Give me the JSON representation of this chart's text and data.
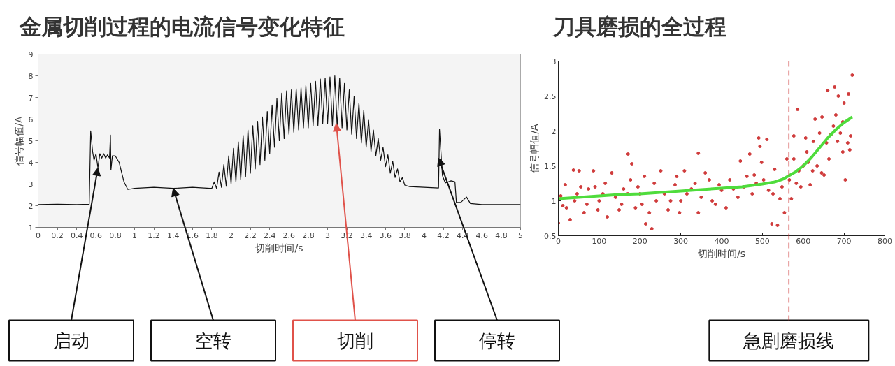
{
  "chart_data": [
    {
      "type": "line",
      "title": "金属切削过程的电流信号变化特征",
      "xlabel": "切削时间/s",
      "ylabel": "信号幅值/A",
      "xlim": [
        0,
        5
      ],
      "ylim": [
        1,
        9
      ],
      "xticks": [
        0,
        0.2,
        0.4,
        0.6,
        0.8,
        1,
        1.2,
        1.4,
        1.6,
        1.8,
        2,
        2.2,
        2.4,
        2.6,
        2.8,
        3,
        3.2,
        3.4,
        3.6,
        3.8,
        4,
        4.2,
        4.4,
        4.6,
        4.8,
        5
      ],
      "yticks": [
        1,
        2,
        3,
        4,
        5,
        6,
        7,
        8,
        9
      ],
      "grid": false,
      "line_style": "solid",
      "x": [
        0,
        0.2,
        0.4,
        0.53,
        0.545,
        0.565,
        0.58,
        0.6,
        0.62,
        0.64,
        0.66,
        0.68,
        0.7,
        0.72,
        0.74,
        0.75,
        0.755,
        0.77,
        0.8,
        0.84,
        0.89,
        0.93,
        1,
        1.2,
        1.4,
        1.6,
        1.78,
        1.8,
        1.825,
        1.85,
        1.875,
        1.9,
        1.925,
        1.95,
        1.975,
        2,
        2.025,
        2.05,
        2.075,
        2.1,
        2.125,
        2.15,
        2.175,
        2.2,
        2.225,
        2.25,
        2.275,
        2.3,
        2.325,
        2.35,
        2.375,
        2.4,
        2.425,
        2.45,
        2.475,
        2.5,
        2.525,
        2.55,
        2.575,
        2.6,
        2.625,
        2.65,
        2.675,
        2.7,
        2.725,
        2.75,
        2.775,
        2.8,
        2.825,
        2.85,
        2.875,
        2.9,
        2.925,
        2.95,
        2.975,
        3,
        3.025,
        3.05,
        3.075,
        3.1,
        3.125,
        3.15,
        3.175,
        3.2,
        3.225,
        3.25,
        3.275,
        3.3,
        3.325,
        3.35,
        3.375,
        3.4,
        3.425,
        3.45,
        3.475,
        3.5,
        3.525,
        3.55,
        3.575,
        3.6,
        3.625,
        3.65,
        3.675,
        3.7,
        3.725,
        3.75,
        3.775,
        3.8,
        3.85,
        4,
        4.15,
        4.16,
        4.19,
        4.22,
        4.28,
        4.32,
        4.335,
        4.38,
        4.44,
        4.48,
        4.6,
        4.8,
        5
      ],
      "series": [
        {
          "color": "#111111",
          "values": [
            2.05,
            2.07,
            2.05,
            2.07,
            5.46,
            4.5,
            4.1,
            4.4,
            3.75,
            4.4,
            4.2,
            4.4,
            4.2,
            4.35,
            4.2,
            5.26,
            3.65,
            4.3,
            4.3,
            4.0,
            3.1,
            2.75,
            2.8,
            2.85,
            2.8,
            2.85,
            2.8,
            2.8,
            3.1,
            2.8,
            3.55,
            2.85,
            3.9,
            2.9,
            4.3,
            3.0,
            4.65,
            3.1,
            4.95,
            3.2,
            5.25,
            3.35,
            5.5,
            3.5,
            5.7,
            3.7,
            5.9,
            3.9,
            6.1,
            4.1,
            6.35,
            4.4,
            6.65,
            4.7,
            6.95,
            5.0,
            7.2,
            5.1,
            7.3,
            5.3,
            7.35,
            5.4,
            7.4,
            5.5,
            7.45,
            5.6,
            7.55,
            5.6,
            7.65,
            5.7,
            7.75,
            5.7,
            7.85,
            5.8,
            7.9,
            5.8,
            7.95,
            5.7,
            8.0,
            5.6,
            7.9,
            5.6,
            7.65,
            5.5,
            7.35,
            5.3,
            7.05,
            5.1,
            6.75,
            4.9,
            6.4,
            4.7,
            5.95,
            4.5,
            5.5,
            4.3,
            5.1,
            4.1,
            4.7,
            3.8,
            4.35,
            3.5,
            4.05,
            3.3,
            3.7,
            3.1,
            3.3,
            2.95,
            2.88,
            2.85,
            2.82,
            5.52,
            3.4,
            3.05,
            3.15,
            3.1,
            2.15,
            2.15,
            2.4,
            2.1,
            2.05,
            2.05,
            2.05
          ]
        }
      ],
      "annotations": [
        {
          "text": "启动",
          "x": 0.62,
          "y": 3.75
        },
        {
          "text": "空转",
          "x": 1.4,
          "y": 2.8
        },
        {
          "text": "切削",
          "x": 3.09,
          "y": 5.8
        },
        {
          "text": "停转",
          "x": 4.15,
          "y": 4.2
        }
      ]
    },
    {
      "type": "scatter",
      "title": "刀具磨损的全过程",
      "xlabel": "切削时间/s",
      "ylabel": "信号幅值/A",
      "xlim": [
        0,
        800
      ],
      "ylim": [
        0.5,
        3
      ],
      "xticks": [
        0,
        100,
        200,
        300,
        400,
        500,
        600,
        700,
        800
      ],
      "yticks": [
        0.5,
        1,
        1.5,
        2,
        2.5,
        3
      ],
      "grid": false,
      "series": [
        {
          "type": "scatter",
          "marker": "circle",
          "color": "#d03c3c",
          "x": [
            0,
            6,
            11,
            17,
            20,
            29,
            37,
            40,
            46,
            51,
            55,
            63,
            70,
            74,
            86,
            90,
            97,
            100,
            109,
            115,
            120,
            131,
            140,
            149,
            155,
            160,
            170,
            171,
            177,
            180,
            189,
            195,
            200,
            205,
            211,
            214,
            223,
            229,
            235,
            240,
            251,
            260,
            269,
            275,
            286,
            290,
            297,
            300,
            309,
            315,
            326,
            335,
            343,
            343,
            350,
            360,
            370,
            377,
            385,
            394,
            400,
            411,
            420,
            429,
            440,
            446,
            455,
            462,
            469,
            475,
            480,
            485,
            491,
            494,
            498,
            503,
            511,
            515,
            523,
            526,
            530,
            537,
            543,
            548,
            554,
            560,
            566,
            571,
            577,
            577,
            583,
            586,
            589,
            594,
            600,
            606,
            609,
            612,
            617,
            623,
            625,
            629,
            634,
            640,
            645,
            646,
            651,
            657,
            660,
            663,
            668,
            674,
            677,
            680,
            684,
            686,
            691,
            697,
            697,
            700,
            703,
            709,
            711,
            714,
            716,
            720
          ],
          "values": [
            0.68,
            1.07,
            0.93,
            1.23,
            0.9,
            0.73,
            1.44,
            1.0,
            1.1,
            1.43,
            1.2,
            0.83,
            0.95,
            1.17,
            1.43,
            1.2,
            0.87,
            1.0,
            1.1,
            1.25,
            0.77,
            1.4,
            1.05,
            0.87,
            0.95,
            1.17,
            1.1,
            1.67,
            1.3,
            1.53,
            0.9,
            1.2,
            1.1,
            0.95,
            1.35,
            0.67,
            0.83,
            0.6,
            1.25,
            1.0,
            1.43,
            1.1,
            0.87,
            1.0,
            1.23,
            1.35,
            0.83,
            1.0,
            1.43,
            1.1,
            1.17,
            1.25,
            0.83,
            1.68,
            1.05,
            1.4,
            1.3,
            1.0,
            0.95,
            1.23,
            1.15,
            0.9,
            1.3,
            1.17,
            1.05,
            1.57,
            1.2,
            1.35,
            1.67,
            1.1,
            1.37,
            1.25,
            1.9,
            1.78,
            1.55,
            1.3,
            1.88,
            1.15,
            0.67,
            1.1,
            1.45,
            0.65,
            1.03,
            1.2,
            0.83,
            1.6,
            1.3,
            1.03,
            1.93,
            1.6,
            1.25,
            2.31,
            1.43,
            1.2,
            1.5,
            1.9,
            1.7,
            1.55,
            1.23,
            1.43,
            1.85,
            2.17,
            1.5,
            1.97,
            1.4,
            2.2,
            1.37,
            1.83,
            2.58,
            1.6,
            1.95,
            2.07,
            2.63,
            2.23,
            1.85,
            2.5,
            1.97,
            1.7,
            2.13,
            2.4,
            1.3,
            1.83,
            2.53,
            1.73,
            1.93,
            2.8
          ]
        },
        {
          "type": "line",
          "line_style": "solid",
          "color": "#4fdc3c",
          "x": [
            0,
            50,
            100,
            150,
            200,
            250,
            300,
            350,
            400,
            450,
            500,
            530,
            550,
            565,
            580,
            600,
            620,
            640,
            660,
            680,
            700,
            720
          ],
          "values": [
            1.03,
            1.05,
            1.07,
            1.09,
            1.1,
            1.12,
            1.14,
            1.16,
            1.18,
            1.2,
            1.24,
            1.27,
            1.31,
            1.36,
            1.41,
            1.5,
            1.62,
            1.76,
            1.9,
            2.02,
            2.12,
            2.2
          ]
        }
      ],
      "ref_lines": [
        {
          "axis": "x",
          "value": 565,
          "label": "急剧磨损线",
          "color": "#cc3333",
          "line_style": "dashed"
        }
      ]
    }
  ]
}
